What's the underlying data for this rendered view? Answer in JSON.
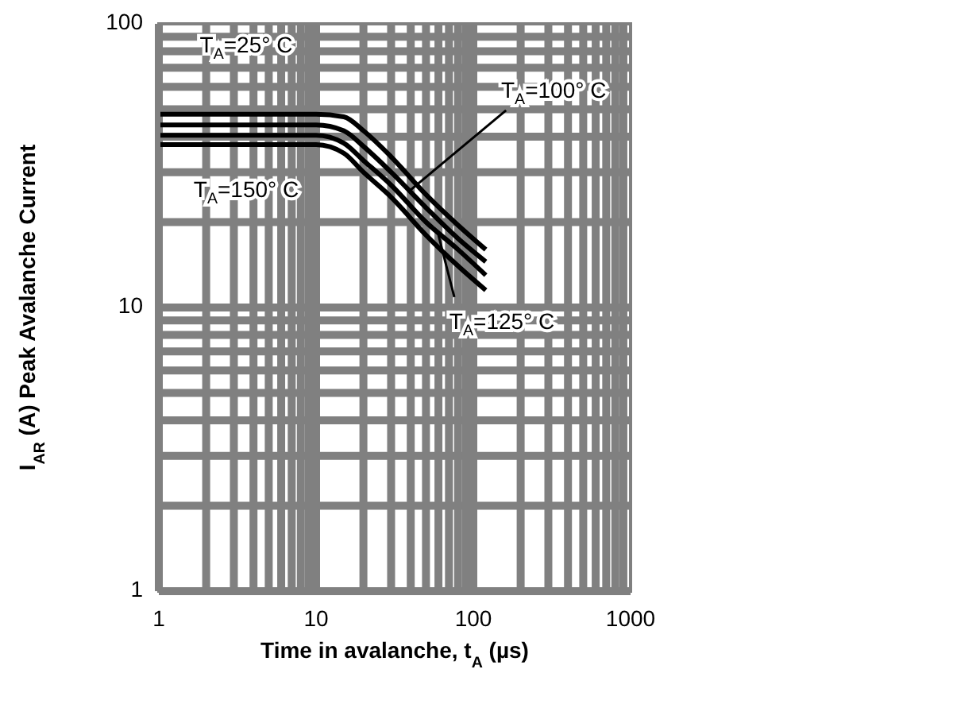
{
  "chart_data": {
    "type": "line",
    "xlabel": "Time in avalanche, t$_{A}$ (µs)",
    "ylabel": "I$_{AR}$ (A) Peak Avalanche Current",
    "log": "xy",
    "xlim": [
      1,
      1000
    ],
    "ylim": [
      1,
      100
    ],
    "xticks": [
      1,
      10,
      100,
      1000
    ],
    "yticks": [
      1,
      10,
      100
    ],
    "grid": true,
    "line_style": "solid",
    "marker": "none",
    "x": [
      1,
      10,
      15,
      20,
      30,
      50,
      80,
      120
    ],
    "series": [
      {
        "color": "#000000",
        "values": [
          48,
          48,
          47,
          42,
          34,
          25,
          19.5,
          16
        ]
      },
      {
        "color": "#000000",
        "values": [
          44,
          44,
          42,
          37,
          30,
          22.5,
          17.5,
          14.5
        ]
      },
      {
        "color": "#000000",
        "values": [
          40.5,
          40.5,
          38,
          33,
          27,
          20,
          16,
          13
        ]
      },
      {
        "color": "#000000",
        "values": [
          37.5,
          37.5,
          35,
          30,
          24.5,
          18,
          14,
          11.5
        ]
      }
    ],
    "annotations": [
      "T$_{A}$=25° C",
      {
        "text": "T$_{A}$=100° C",
        "x": 40,
        "y": 26
      },
      "T$_{A}$=150° C",
      {
        "text": "T$_{A}$=125° C",
        "x": 60,
        "y": 18
      }
    ]
  }
}
